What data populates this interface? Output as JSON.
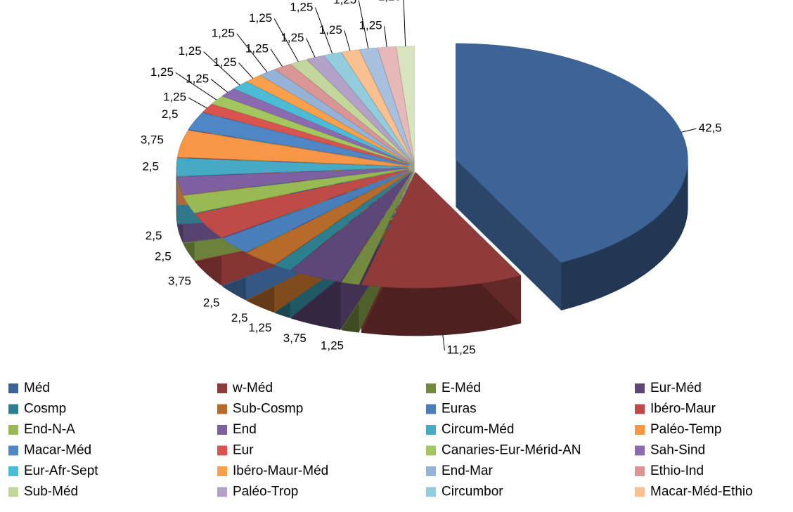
{
  "chart_data": {
    "type": "pie",
    "categories": [
      "Méd",
      "w-Méd",
      "E-Méd",
      "Eur-Méd",
      "Cosmp",
      "Sub-Cosmp",
      "Euras",
      "Ibéro-Maur",
      "End-N-A",
      "End",
      "Circum-Méd",
      "Paléo-Temp",
      "Macar-Méd",
      "Eur",
      "Canaries-Eur-Mérid-AN",
      "Sah-Sind",
      "Eur-Afr-Sept",
      "Ibéro-Maur-Méd",
      "End-Mar",
      "Ethio-Ind",
      "Sub-Méd",
      "Paléo-Trop",
      "Circumbor",
      "Macar-Méd-Ethio",
      null,
      null,
      null
    ],
    "values": [
      42.5,
      11.25,
      1.25,
      3.75,
      1.25,
      2.5,
      2.5,
      3.75,
      2.5,
      2.5,
      2.5,
      3.75,
      2.5,
      1.25,
      1.25,
      1.25,
      1.25,
      1.25,
      1.25,
      1.25,
      1.25,
      1.25,
      1.25,
      1.25,
      1.25,
      1.25,
      1.25
    ],
    "value_labels": [
      "42,5",
      "11,25",
      "1,25",
      "3,75",
      "1,25",
      "2,5",
      "2,5",
      "3,75",
      "2,5",
      "2,5",
      "2,5",
      "3,75",
      "2,5",
      "1,25",
      "1,25",
      "1,25",
      "1,25",
      "1,25",
      "1,25",
      "1,25",
      "1,25",
      "1,25",
      "1,25",
      "1,25",
      "1,25",
      "1,25",
      "1,25"
    ],
    "colors": [
      "#3d6496",
      "#8e3b39",
      "#72893f",
      "#5d4778",
      "#2d7f8f",
      "#b76b2a",
      "#4a7ebb",
      "#be4b48",
      "#98b954",
      "#7d60a0",
      "#46aac5",
      "#f79646",
      "#4f86c6",
      "#d9534f",
      "#a4c65f",
      "#8b6bb0",
      "#4bbbd6",
      "#f9a04c",
      "#95b3d7",
      "#d99694",
      "#c3d69b",
      "#b3a2c7",
      "#93cddd",
      "#fac090",
      "#a7c0de",
      "#e6b9b8",
      "#d7e4bd"
    ],
    "legend": "bottom"
  }
}
